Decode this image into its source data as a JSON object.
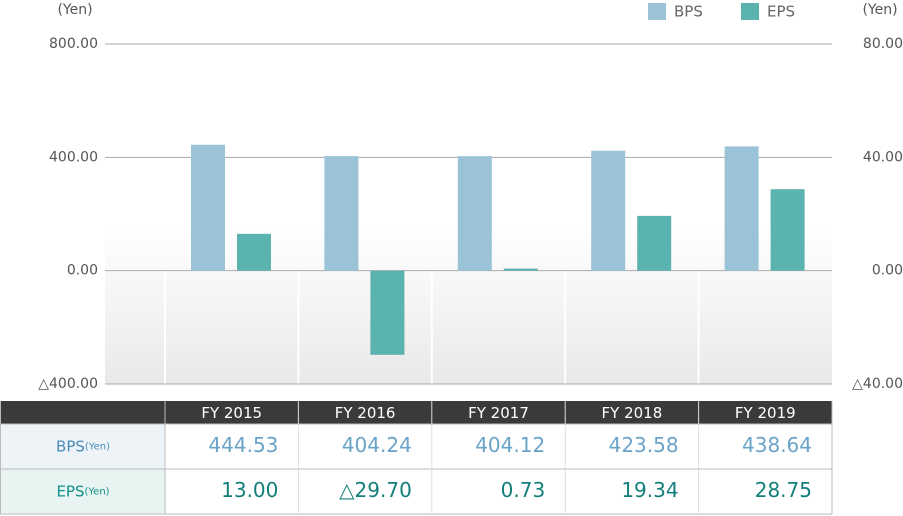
{
  "chart_data": {
    "type": "bar",
    "y_label": "(Yen)",
    "y2_label": "(Yen)",
    "categories": [
      "FY 2015",
      "FY 2016",
      "FY 2017",
      "FY 2018",
      "FY 2019"
    ],
    "series": [
      {
        "name": "BPS",
        "color": "#9bc3d8",
        "values": [
          444.53,
          404.24,
          404.12,
          423.58,
          438.64
        ]
      },
      {
        "name": "EPS",
        "color": "#5bb3b0",
        "axis": "y2",
        "values": [
          13.0,
          -29.7,
          0.73,
          19.34,
          28.75
        ],
        "value_labels": [
          "13.00",
          "△29.70",
          "0.73",
          "19.34",
          "28.75"
        ]
      }
    ],
    "row_units": [
      "(Yen)",
      "(Yen)"
    ],
    "ylim": [
      -400,
      800
    ],
    "yticks": [
      {
        "value": -400,
        "label": "△400.00"
      },
      {
        "value": 0,
        "label": "0.00"
      },
      {
        "value": 400,
        "label": "400.00"
      },
      {
        "value": 800,
        "label": "800.00"
      }
    ],
    "y2lim": [
      -40,
      80
    ],
    "y2ticks": [
      {
        "value": -40,
        "label": "△40.00"
      },
      {
        "value": 0,
        "label": "0.00"
      },
      {
        "value": 40,
        "label": "40.00"
      },
      {
        "value": 80,
        "label": "80.00"
      }
    ],
    "grid": true,
    "legend": "top-right"
  }
}
